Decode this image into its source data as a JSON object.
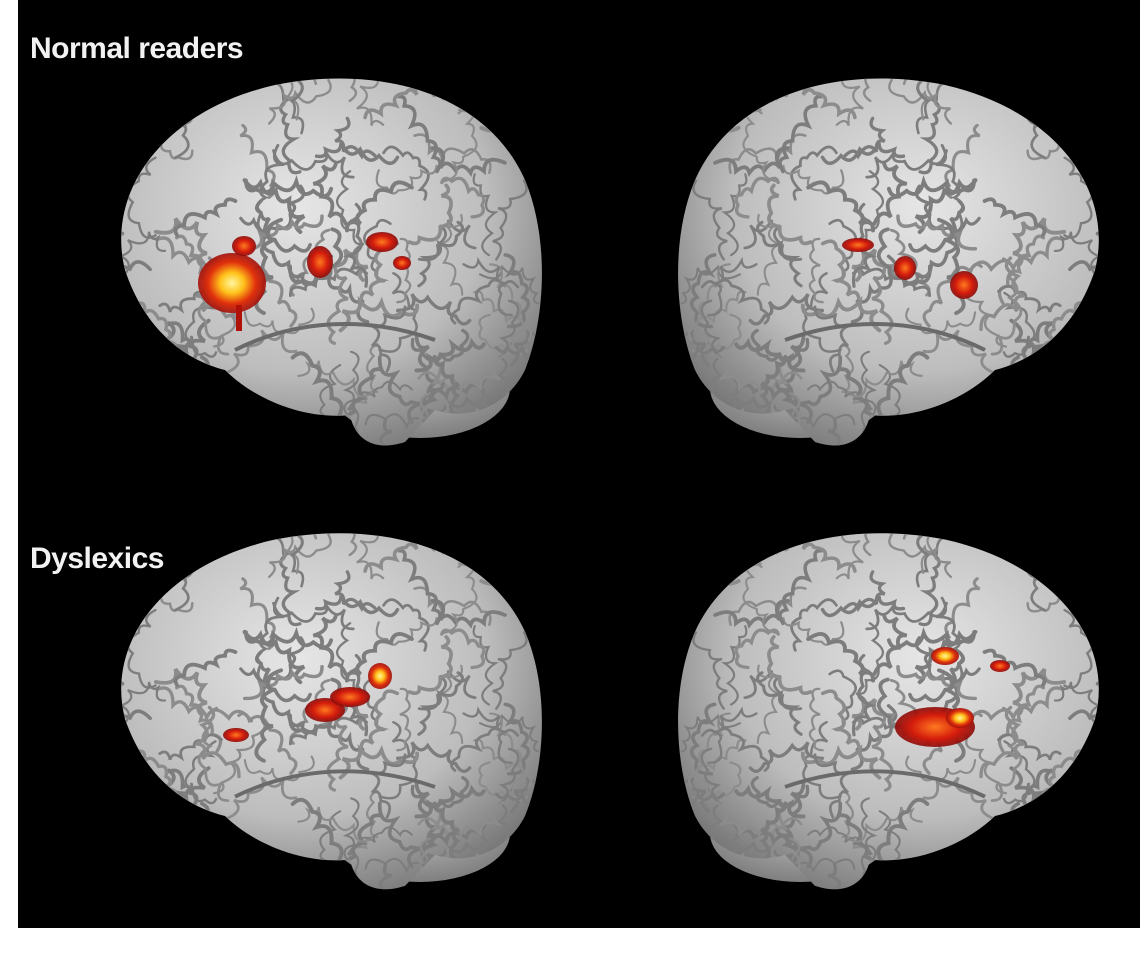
{
  "panels": [
    {
      "label": "Normal readers"
    },
    {
      "label": "Dyslexics"
    }
  ]
}
